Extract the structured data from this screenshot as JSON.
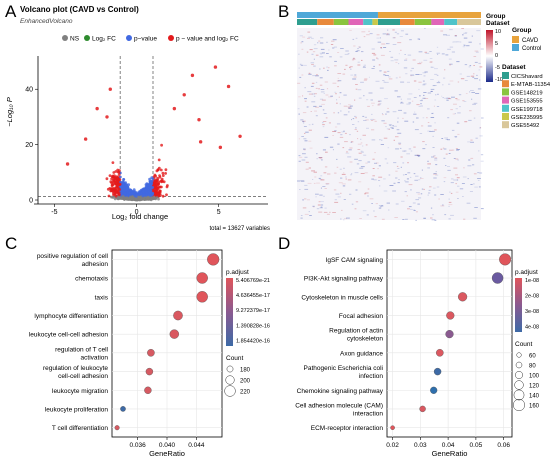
{
  "panels": {
    "A": {
      "letter": "A"
    },
    "B": {
      "letter": "B"
    },
    "C": {
      "letter": "C"
    },
    "D": {
      "letter": "D"
    }
  },
  "chart_data": [
    {
      "id": "volcano",
      "type": "scatter",
      "title": "Volcano plot (CAVD vs Control)",
      "subtitle": "EnhancedVolcano",
      "xlabel": "Log₂ fold change",
      "ylabel": "−Log₁₀ P",
      "xlim": [
        -6,
        8
      ],
      "ylim": [
        0,
        52
      ],
      "xticks": [
        -5,
        0,
        5
      ],
      "yticks": [
        0,
        20,
        40
      ],
      "fc_cutoff": 1,
      "p_cutoff_y": 1.3,
      "legend_position": "top",
      "legend": [
        {
          "label": "NS",
          "color": "#808080"
        },
        {
          "label": "Log₂ FC",
          "color": "#2e8b2e"
        },
        {
          "label": "p−value",
          "color": "#4169e1"
        },
        {
          "label": "p − value and log₂ FC",
          "color": "#e31a1c"
        }
      ],
      "outliers": [
        {
          "x": 4.8,
          "y": 48
        },
        {
          "x": 5.6,
          "y": 41
        },
        {
          "x": 6.3,
          "y": 23
        },
        {
          "x": 3.4,
          "y": 45
        },
        {
          "x": 2.9,
          "y": 38
        },
        {
          "x": -1.6,
          "y": 40
        },
        {
          "x": -2.4,
          "y": 33
        },
        {
          "x": -1.8,
          "y": 30
        },
        {
          "x": -3.1,
          "y": 22
        },
        {
          "x": 3.8,
          "y": 29
        },
        {
          "x": 2.3,
          "y": 33
        },
        {
          "x": -4.2,
          "y": 13
        },
        {
          "x": 5.1,
          "y": 19
        },
        {
          "x": 3.9,
          "y": 21
        }
      ],
      "footer": "total = 13627 variables"
    },
    {
      "id": "heatmap",
      "type": "heatmap",
      "annotations": {
        "group_label": "Group",
        "dataset_label": "Dataset",
        "group_title": "Group",
        "group_items": [
          {
            "label": "CAVD",
            "color": "#e8a33c"
          },
          {
            "label": "Control",
            "color": "#4fa8d8"
          }
        ],
        "scale_ticks": [
          "10",
          "5",
          "0",
          "-5",
          "-10"
        ],
        "dataset_title": "Dataset",
        "dataset_items": [
          {
            "label": "CICShavard",
            "color": "#2e9e8f"
          },
          {
            "label": "E-MTAB-11354",
            "color": "#e8893c"
          },
          {
            "label": "GSE148219",
            "color": "#8ac43f"
          },
          {
            "label": "GSE153555",
            "color": "#e066b8"
          },
          {
            "label": "GSE199718",
            "color": "#4fc3c9"
          },
          {
            "label": "GSE235995",
            "color": "#c9c84a"
          },
          {
            "label": "GSE55492",
            "color": "#d9c79a"
          }
        ]
      },
      "group_split": 0.44,
      "dataset_strip": [
        {
          "label": "CICShavard",
          "frac": 0.11
        },
        {
          "label": "E-MTAB-11354",
          "frac": 0.09
        },
        {
          "label": "GSE148219",
          "frac": 0.08
        },
        {
          "label": "GSE153555",
          "frac": 0.08
        },
        {
          "label": "GSE199718",
          "frac": 0.05
        },
        {
          "label": "GSE235995",
          "frac": 0.03
        },
        {
          "label": "CICShavard",
          "frac": 0.12
        },
        {
          "label": "E-MTAB-11354",
          "frac": 0.08
        },
        {
          "label": "GSE148219",
          "frac": 0.09
        },
        {
          "label": "GSE153555",
          "frac": 0.07
        },
        {
          "label": "GSE199718",
          "frac": 0.07
        },
        {
          "label": "GSE55492",
          "frac": 0.13
        }
      ]
    },
    {
      "id": "go",
      "type": "scatter",
      "xlabel": "GeneRatio",
      "xlim": [
        0.0325,
        0.0475
      ],
      "xticks": [
        "0.036",
        "0.040",
        "0.044"
      ],
      "xtick_values": [
        0.036,
        0.04,
        0.044
      ],
      "color_title": "p.adjust",
      "color_ticks": [
        "5.406769e-21",
        "4.636455e-17",
        "9.272379e-17",
        "1.390828e-16",
        "1.854420e-16"
      ],
      "size_title": "Count",
      "size_ticks": [
        "180",
        "200",
        "220"
      ],
      "terms": [
        {
          "label": "positive regulation of cell\nadhesion",
          "x": 0.0463,
          "count": 228,
          "color": "#e0555b"
        },
        {
          "label": "chemotaxis",
          "x": 0.0448,
          "count": 222,
          "color": "#e0555b"
        },
        {
          "label": "taxis",
          "x": 0.0448,
          "count": 222,
          "color": "#e0555b"
        },
        {
          "label": "lymphocyte differentiation",
          "x": 0.0415,
          "count": 205,
          "color": "#d95860"
        },
        {
          "label": "leukocyte cell-cell adhesion",
          "x": 0.041,
          "count": 203,
          "color": "#d95860"
        },
        {
          "label": "regulation of T cell\nactivation",
          "x": 0.0378,
          "count": 188,
          "color": "#d65a62"
        },
        {
          "label": "regulation of leukocyte\ncell-cell adhesion",
          "x": 0.0376,
          "count": 187,
          "color": "#d65a62"
        },
        {
          "label": "leukocyte migration",
          "x": 0.0374,
          "count": 186,
          "color": "#d65a62"
        },
        {
          "label": "leukocyte proliferation",
          "x": 0.034,
          "count": 170,
          "color": "#3d6aa6"
        },
        {
          "label": "T cell differentiation",
          "x": 0.0332,
          "count": 166,
          "color": "#d65a62"
        }
      ]
    },
    {
      "id": "kegg",
      "type": "scatter",
      "xlabel": "GeneRatio",
      "xlim": [
        0.018,
        0.063
      ],
      "xticks": [
        "0.02",
        "0.03",
        "0.04",
        "0.05",
        "0.06"
      ],
      "xtick_values": [
        0.02,
        0.03,
        0.04,
        0.05,
        0.06
      ],
      "color_title": "p.adjust",
      "color_ticks": [
        "1e-08",
        "2e-08",
        "3e-08",
        "4e-08"
      ],
      "size_title": "Count",
      "size_ticks": [
        "60",
        "80",
        "100",
        "120",
        "140",
        "160"
      ],
      "terms": [
        {
          "label": "IgSF CAM signaling",
          "x": 0.0605,
          "count": 160,
          "color": "#e0555b"
        },
        {
          "label": "PI3K-Akt signaling pathway",
          "x": 0.0578,
          "count": 150,
          "color": "#6a5aa0"
        },
        {
          "label": "Cytoskeleton in muscle cells",
          "x": 0.0452,
          "count": 118,
          "color": "#db5860"
        },
        {
          "label": "Focal adhesion",
          "x": 0.0408,
          "count": 105,
          "color": "#db5860"
        },
        {
          "label": "Regulation of actin\ncytoskeleton",
          "x": 0.0405,
          "count": 104,
          "color": "#8a5a90"
        },
        {
          "label": "Axon guidance",
          "x": 0.037,
          "count": 95,
          "color": "#db5860"
        },
        {
          "label": "Pathogenic Escherichia coli\ninfection",
          "x": 0.0362,
          "count": 92,
          "color": "#3d6aa6"
        },
        {
          "label": "Chemokine signaling pathway",
          "x": 0.0348,
          "count": 89,
          "color": "#2e6fad"
        },
        {
          "label": "Cell adhesion molecule (CAM)\ninteraction",
          "x": 0.0308,
          "count": 78,
          "color": "#d95860"
        },
        {
          "label": "ECM-receptor interaction",
          "x": 0.02,
          "count": 52,
          "color": "#e0555b"
        }
      ]
    }
  ]
}
